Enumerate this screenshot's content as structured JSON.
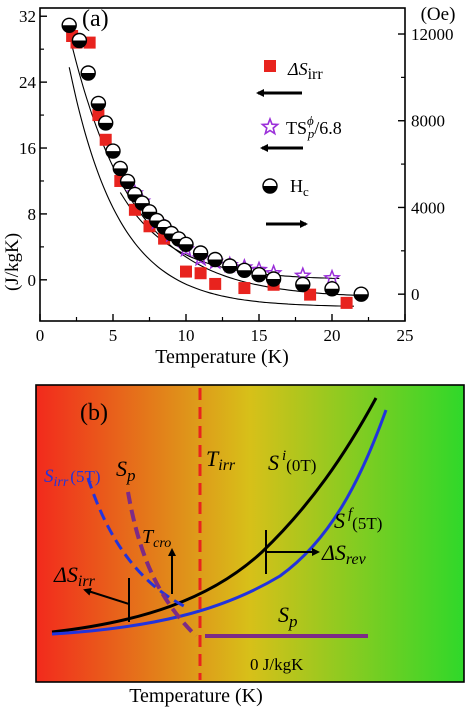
{
  "panel_a": {
    "label": "(a)",
    "left_axis_label": "(J/kgK)",
    "right_axis_label": "(Oe)",
    "legend": {
      "dS_irr": "ΔS",
      "dS_irr_sub": "irr",
      "TS": "TS",
      "TS_sup": "ϕ",
      "TS_sub": "p",
      "TS_rest": "/6.8",
      "Hc": "H",
      "Hc_sub": "c"
    }
  },
  "panel_b": {
    "label": "(b)",
    "xlabel": "Temperature (K)",
    "gradient": {
      "left": "#f22a1c",
      "mid": "#d7c019",
      "right": "#2fd82a"
    },
    "labels": {
      "s_irr": "S",
      "s_irr_sub": "irr",
      "s_irr_paren": "(5T)",
      "s_p_top": "S",
      "s_p_top_sub": "p",
      "t_irr": "T",
      "t_irr_sub": "irr",
      "s_i": "S",
      "s_i_sup": "i",
      "s_i_paren": "(0T)",
      "t_cro": "T",
      "t_cro_sub": "cro",
      "s_f": "S",
      "s_f_sup": "f",
      "s_f_paren": "(5T)",
      "ds_rev": "ΔS",
      "ds_rev_sub": "rev",
      "ds_irr": "ΔS",
      "ds_irr_sub": "irr",
      "s_p_bottom": "S",
      "s_p_bottom_sub": "p",
      "zero": "0 J/kgK"
    }
  },
  "chart_data": {
    "type": "scatter",
    "xlabel": "Temperature (K)",
    "ylabel": "(J/kgK)",
    "y2label": "(Oe)",
    "xlim": [
      0,
      25
    ],
    "ylim": [
      -5,
      33
    ],
    "y2lim": [
      -1237.5,
      13200
    ],
    "xticks": [
      0,
      5,
      10,
      15,
      20,
      25
    ],
    "yticks": [
      0,
      8,
      16,
      24,
      32
    ],
    "y2ticks": [
      0,
      4000,
      8000,
      12000
    ],
    "legend_position": "right",
    "series": [
      {
        "name": "ΔSirr",
        "axis": "left",
        "marker": "square",
        "color": "#e8231e",
        "x": [
          2.2,
          2.5,
          3.4,
          4.0,
          4.5,
          5.5,
          6.5,
          7.5,
          8.5,
          10.0,
          11.0,
          12.0,
          14.0,
          16.0,
          18.5,
          21.0
        ],
        "y": [
          29.6,
          28.8,
          28.8,
          20.0,
          17.0,
          12.0,
          8.5,
          6.5,
          5.0,
          1.0,
          0.8,
          -0.5,
          -1.0,
          -0.6,
          -1.8,
          -2.8
        ]
      },
      {
        "name": "TSp/6.8",
        "axis": "left",
        "marker": "star-open",
        "color": "#9b30d9",
        "x": [
          6.5,
          7.0,
          8.0,
          9.0,
          10.0,
          11.0,
          12.0,
          13.0,
          14.0,
          15.0,
          16.0,
          18.0,
          20.0
        ],
        "y": [
          10.5,
          9.5,
          7.0,
          5.5,
          3.7,
          2.6,
          2.2,
          1.8,
          1.5,
          1.2,
          0.8,
          0.5,
          0.2
        ]
      },
      {
        "name": "Hc",
        "axis": "right",
        "marker": "half-filled-circle",
        "color": "#000000",
        "x": [
          2.0,
          2.7,
          3.3,
          4.0,
          4.5,
          5.0,
          5.5,
          6.0,
          6.5,
          7.0,
          7.5,
          8.0,
          8.5,
          9.0,
          9.5,
          10.0,
          11.0,
          12.0,
          13.0,
          14.0,
          15.0,
          16.0,
          18.0,
          20.0,
          22.0
        ],
        "y": [
          12400,
          11700,
          10200,
          8800,
          7900,
          6600,
          5800,
          5200,
          4600,
          4200,
          3800,
          3400,
          3100,
          2800,
          2550,
          2300,
          1900,
          1600,
          1300,
          1100,
          900,
          700,
          450,
          250,
          0
        ]
      }
    ]
  }
}
